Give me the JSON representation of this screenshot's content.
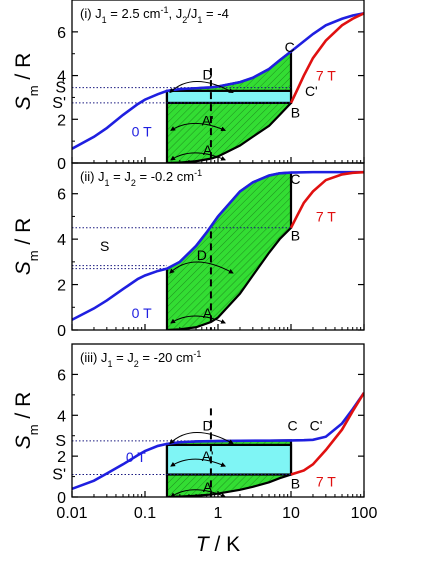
{
  "chart_data": [
    {
      "type": "line",
      "panel_label": "(i)",
      "title_parts": {
        "prefix": "(i) J",
        "sub1": "1",
        "middle": " = 2.5 cm",
        "sup": "-1",
        "after": ", J",
        "sub2": "2",
        "slash": "/J",
        "sub3": "1",
        "end": " = -4"
      },
      "xlabel": "",
      "ylabel": "S_m / R",
      "ylabel_parts": {
        "base": "S",
        "sub": "m",
        "rest": " / R"
      },
      "x_scale": "log",
      "xlim": [
        0.01,
        100
      ],
      "ylim": [
        0,
        7
      ],
      "y_ticks": [
        0,
        2,
        4,
        6
      ],
      "y_tick_labels": [
        "0",
        "2",
        "4",
        "6"
      ],
      "left_tick_labels": [
        {
          "label": "S",
          "y": 3.45
        },
        {
          "label": "S'",
          "y": 2.75
        }
      ],
      "series": [
        {
          "name": "0 T",
          "color": "#1f1fe0",
          "x": [
            0.01,
            0.02,
            0.03,
            0.05,
            0.08,
            0.1,
            0.15,
            0.2,
            0.3,
            0.5,
            0.7,
            0.8,
            1,
            2,
            3,
            5,
            7,
            10,
            20,
            30,
            50,
            70,
            100
          ],
          "y": [
            0.65,
            1.2,
            1.6,
            2.2,
            2.7,
            2.9,
            3.15,
            3.3,
            3.38,
            3.42,
            3.45,
            3.46,
            3.5,
            3.7,
            3.9,
            4.3,
            4.7,
            5.1,
            5.9,
            6.3,
            6.6,
            6.75,
            6.85
          ]
        },
        {
          "name": "7 T",
          "color": "#e01010",
          "x": [
            10,
            12,
            15,
            20,
            30,
            50,
            70,
            100
          ],
          "y": [
            2.75,
            3.3,
            4.0,
            4.8,
            5.6,
            6.3,
            6.6,
            6.85
          ]
        },
        {
          "name": "",
          "color": "#000000",
          "x": [
            0.2,
            0.3,
            0.5,
            0.8,
            1,
            2,
            3,
            5,
            7,
            10
          ],
          "y": [
            0,
            0.02,
            0.08,
            0.2,
            0.3,
            0.8,
            1.2,
            1.7,
            2.2,
            2.75
          ]
        }
      ],
      "legend_labels": [
        {
          "text": "0 T",
          "color": "#1f1fe0",
          "x": 0.09,
          "y": 1.45
        },
        {
          "text": "7 T",
          "color": "#e01010",
          "x": 30,
          "y": 4.0
        }
      ],
      "annotations": [
        {
          "text": "A",
          "x": 0.72,
          "y": 0.6
        },
        {
          "text": "A'",
          "x": 0.72,
          "y": 1.95
        },
        {
          "text": "D",
          "x": 0.72,
          "y": 4.05
        },
        {
          "text": "C",
          "x": 9.6,
          "y": 5.3
        },
        {
          "text": "C'",
          "x": 19,
          "y": 3.3
        },
        {
          "text": "B",
          "x": 11.5,
          "y": 2.3
        }
      ],
      "markers": {
        "cycle_x": [
          0.2,
          10
        ],
        "dashed_x": 0.8,
        "S_value": 3.45,
        "S_prime_value": 2.75,
        "C_value": 5.1
      },
      "fills": {
        "hatched_green": "#33dd33",
        "cyan_rect": "#7ff5f5"
      }
    },
    {
      "type": "line",
      "panel_label": "(ii)",
      "title_parts": {
        "prefix": "(ii) J",
        "sub1": "1",
        "middle": " = J",
        "sub2": "2",
        "end": " = -0.2 cm",
        "sup": "-1"
      },
      "xlabel": "",
      "ylabel": "S_m / R",
      "ylabel_parts": {
        "base": "S",
        "sub": "m",
        "rest": " / R"
      },
      "x_scale": "log",
      "xlim": [
        0.01,
        100
      ],
      "ylim": [
        0,
        7
      ],
      "y_ticks": [
        0,
        2,
        4,
        6
      ],
      "y_tick_labels": [
        "0",
        "2",
        "4",
        "6"
      ],
      "series": [
        {
          "name": "0 T",
          "color": "#1f1fe0",
          "x": [
            0.01,
            0.02,
            0.03,
            0.05,
            0.08,
            0.1,
            0.15,
            0.2,
            0.3,
            0.5,
            0.7,
            1,
            2,
            3,
            5,
            7,
            10,
            20,
            50,
            100
          ],
          "y": [
            0.45,
            0.95,
            1.3,
            1.8,
            2.25,
            2.4,
            2.6,
            2.7,
            3.0,
            3.7,
            4.3,
            5.0,
            6.1,
            6.5,
            6.8,
            6.9,
            6.93,
            6.95,
            6.95,
            6.95
          ]
        },
        {
          "name": "7 T",
          "color": "#e01010",
          "x": [
            10,
            12,
            15,
            20,
            30,
            50,
            70,
            100
          ],
          "y": [
            4.5,
            5.0,
            5.6,
            6.1,
            6.6,
            6.85,
            6.92,
            6.95
          ]
        },
        {
          "name": "",
          "color": "#000000",
          "x": [
            0.2,
            0.3,
            0.5,
            0.8,
            1,
            2,
            3,
            5,
            7,
            10
          ],
          "y": [
            0,
            0.03,
            0.12,
            0.35,
            0.55,
            1.6,
            2.4,
            3.4,
            4.0,
            4.5
          ]
        }
      ],
      "legend_labels": [
        {
          "text": "0 T",
          "color": "#1f1fe0",
          "x": 0.09,
          "y": 0.75
        },
        {
          "text": "7 T",
          "color": "#e01010",
          "x": 30,
          "y": 5.0
        }
      ],
      "annotations": [
        {
          "text": "A",
          "x": 0.72,
          "y": 0.75
        },
        {
          "text": "D",
          "x": 0.6,
          "y": 3.3
        },
        {
          "text": "C",
          "x": 11.5,
          "y": 6.65
        },
        {
          "text": "B",
          "x": 11.5,
          "y": 4.15
        },
        {
          "text": "S",
          "x": 0.028,
          "y": 3.7
        }
      ],
      "markers": {
        "cycle_x": [
          0.2,
          10
        ],
        "dashed_x": 0.8,
        "S_top": 4.5,
        "S_bottom": 2.7
      },
      "fills": {
        "hatched_green": "#33dd33"
      }
    },
    {
      "type": "line",
      "panel_label": "(iii)",
      "title_parts": {
        "prefix": "(iii) J",
        "sub1": "1",
        "middle": " = J",
        "sub2": "2",
        "end": " = -20 cm",
        "sup": "-1"
      },
      "xlabel": "T / K",
      "xlabel_parts": {
        "base": "T",
        "rest": " / K"
      },
      "ylabel": "S_m / R",
      "ylabel_parts": {
        "base": "S",
        "sub": "m",
        "rest": " / R"
      },
      "x_scale": "log",
      "xlim": [
        0.01,
        100
      ],
      "ylim": [
        0,
        7
      ],
      "x_ticks": [
        0.01,
        0.1,
        1,
        10,
        100
      ],
      "x_tick_labels": [
        "0.01",
        "0.1",
        "1",
        "10",
        "100"
      ],
      "y_ticks": [
        0,
        2,
        4,
        6
      ],
      "y_tick_labels": [
        "0",
        "2",
        "4",
        "6"
      ],
      "left_tick_labels": [
        {
          "label": "S",
          "y": 2.75
        },
        {
          "label": "S'",
          "y": 1.1
        }
      ],
      "series": [
        {
          "name": "0 T",
          "color": "#1f1fe0",
          "x": [
            0.01,
            0.02,
            0.03,
            0.05,
            0.08,
            0.1,
            0.15,
            0.2,
            0.3,
            0.5,
            1,
            2,
            5,
            10,
            15,
            20,
            30,
            50,
            70,
            100
          ],
          "y": [
            0.4,
            0.8,
            1.15,
            1.6,
            2.05,
            2.25,
            2.5,
            2.6,
            2.68,
            2.72,
            2.74,
            2.75,
            2.76,
            2.77,
            2.78,
            2.8,
            2.95,
            3.6,
            4.3,
            5.1
          ]
        },
        {
          "name": "7 T",
          "color": "#e01010",
          "x": [
            10,
            15,
            20,
            30,
            50,
            70,
            100
          ],
          "y": [
            1.1,
            1.3,
            1.6,
            2.3,
            3.3,
            4.2,
            5.1
          ]
        },
        {
          "name": "",
          "color": "#000000",
          "x": [
            0.2,
            0.3,
            0.5,
            0.8,
            1,
            2,
            3,
            5,
            7,
            10
          ],
          "y": [
            0,
            0.02,
            0.06,
            0.12,
            0.17,
            0.35,
            0.5,
            0.72,
            0.92,
            1.1
          ]
        }
      ],
      "legend_labels": [
        {
          "text": "0 T",
          "color": "#1f1fe0",
          "x": 0.075,
          "y": 1.95
        },
        {
          "text": "7 T",
          "color": "#e01010",
          "x": 30,
          "y": 0.75
        }
      ],
      "annotations": [
        {
          "text": "A",
          "x": 0.72,
          "y": 0.5
        },
        {
          "text": "A'",
          "x": 0.72,
          "y": 2.0
        },
        {
          "text": "D",
          "x": 0.72,
          "y": 3.5
        },
        {
          "text": "C",
          "x": 10.5,
          "y": 3.5
        },
        {
          "text": "C'",
          "x": 22,
          "y": 3.5
        },
        {
          "text": "B",
          "x": 11.5,
          "y": 0.65
        }
      ],
      "markers": {
        "cycle_x": [
          0.2,
          10
        ],
        "dashed_x": 0.8,
        "S_value": 2.75,
        "S_prime_value": 1.1
      },
      "fills": {
        "hatched_green": "#33dd33",
        "cyan_rect": "#7ff5f5"
      }
    }
  ]
}
